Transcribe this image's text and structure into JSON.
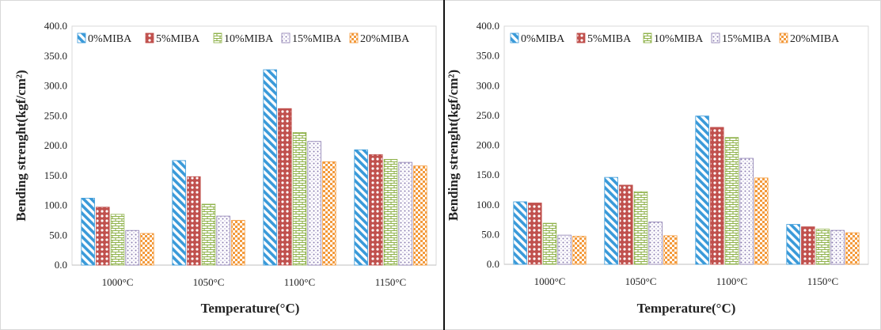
{
  "chart_data": [
    {
      "type": "bar",
      "xlabel": "Temperature(°C)",
      "ylabel": "Bending strenght(kgf/cm²)",
      "ylim": [
        0,
        400
      ],
      "yticks": [
        "0.0",
        "50.0",
        "100.0",
        "150.0",
        "200.0",
        "250.0",
        "300.0",
        "350.0",
        "400.0"
      ],
      "categories": [
        "1000°C",
        "1050°C",
        "1100°C",
        "1150°C"
      ],
      "legend_placement": "top",
      "series": [
        {
          "name": "0%MIBA",
          "values": [
            112,
            175,
            327,
            193
          ]
        },
        {
          "name": "5%MIBA",
          "values": [
            97,
            148,
            262,
            185
          ]
        },
        {
          "name": "10%MIBA",
          "values": [
            85,
            102,
            222,
            177
          ]
        },
        {
          "name": "15%MIBA",
          "values": [
            58,
            82,
            207,
            172
          ]
        },
        {
          "name": "20%MIBA",
          "values": [
            53,
            75,
            173,
            166
          ]
        }
      ]
    },
    {
      "type": "bar",
      "xlabel": "Temperature(°C)",
      "ylabel": "Bending strenght(kgf/cm²)",
      "ylim": [
        0,
        400
      ],
      "yticks": [
        "0.0",
        "50.0",
        "100.0",
        "150.0",
        "200.0",
        "250.0",
        "300.0",
        "350.0",
        "400.0"
      ],
      "categories": [
        "1000°C",
        "1050°C",
        "1100°C",
        "1150°C"
      ],
      "legend_placement": "top",
      "series": [
        {
          "name": "0%MIBA",
          "values": [
            105,
            146,
            249,
            67
          ]
        },
        {
          "name": "5%MIBA",
          "values": [
            103,
            133,
            230,
            63
          ]
        },
        {
          "name": "10%MIBA",
          "values": [
            69,
            122,
            213,
            59
          ]
        },
        {
          "name": "15%MIBA",
          "values": [
            49,
            71,
            178,
            57
          ]
        },
        {
          "name": "20%MIBA",
          "values": [
            47,
            48,
            145,
            53
          ]
        }
      ]
    }
  ],
  "series_colors": [
    "#3a9ad9",
    "#c0504d",
    "#8fb24a",
    "#8a7cb0",
    "#f39a3c"
  ],
  "series_patterns": [
    "diagonal-stripes",
    "circles",
    "bricks",
    "dots",
    "checker"
  ]
}
